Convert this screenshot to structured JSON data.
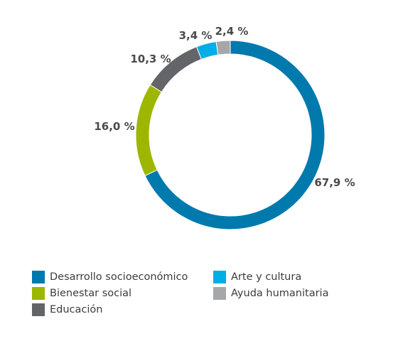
{
  "chart_data": {
    "type": "donut",
    "series": [
      {
        "name": "Desarrollo socioeconómico",
        "value": 67.9,
        "label": "67,9 %",
        "color": "#0079ac"
      },
      {
        "name": "Bienestar social",
        "value": 16.0,
        "label": "16,0 %",
        "color": "#9db600"
      },
      {
        "name": "Educación",
        "value": 10.3,
        "label": "10,3 %",
        "color": "#646569"
      },
      {
        "name": "Arte y cultura",
        "value": 3.4,
        "label": "3,4 %",
        "color": "#00aee6"
      },
      {
        "name": "Ayuda humanitaria",
        "value": 2.4,
        "label": "2,4 %",
        "color": "#a6a7a9"
      }
    ],
    "legend_placement": "bottom",
    "legend": [
      {
        "text": "Desarrollo socioeconómico",
        "color": "#0079ac"
      },
      {
        "text": "Arte y cultura",
        "color": "#00aee6"
      },
      {
        "text": "Bienestar social",
        "color": "#9db600"
      },
      {
        "text": "Ayuda humanitaria",
        "color": "#a6a7a9"
      },
      {
        "text": "Educación",
        "color": "#646569"
      }
    ]
  }
}
